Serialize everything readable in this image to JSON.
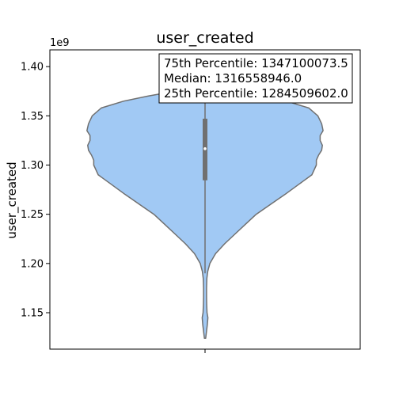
{
  "chart_data": {
    "type": "violin",
    "title": "user_created",
    "xlabel": "",
    "ylabel": "user_created",
    "offset_text": "1e9",
    "ylim": [
      1.113,
      1.417
    ],
    "yticks": [
      1.15,
      1.2,
      1.25,
      1.3,
      1.35,
      1.4
    ],
    "ytick_labels": [
      "1.15",
      "1.20",
      "1.25",
      "1.30",
      "1.35",
      "1.40"
    ],
    "grid": false,
    "fill_color": "#a1c9f4",
    "edge_color": "#707070",
    "box_color": "#707070",
    "median_color": "#ffffff",
    "quartiles": {
      "q1": 1.2845,
      "median": 1.3166,
      "q3": 1.3471
    },
    "whisker": [
      1.19,
      1.382
    ],
    "density_profile": [
      [
        1.124,
        0.004
      ],
      [
        1.13,
        0.009
      ],
      [
        1.138,
        0.015
      ],
      [
        1.145,
        0.019
      ],
      [
        1.15,
        0.013
      ],
      [
        1.158,
        0.011
      ],
      [
        1.166,
        0.01
      ],
      [
        1.175,
        0.01
      ],
      [
        1.185,
        0.012
      ],
      [
        1.192,
        0.018
      ],
      [
        1.2,
        0.032
      ],
      [
        1.21,
        0.07
      ],
      [
        1.22,
        0.13
      ],
      [
        1.23,
        0.2
      ],
      [
        1.24,
        0.27
      ],
      [
        1.25,
        0.34
      ],
      [
        1.26,
        0.435
      ],
      [
        1.27,
        0.53
      ],
      [
        1.28,
        0.62
      ],
      [
        1.29,
        0.71
      ],
      [
        1.3,
        0.74
      ],
      [
        1.305,
        0.74
      ],
      [
        1.31,
        0.755
      ],
      [
        1.315,
        0.775
      ],
      [
        1.32,
        0.78
      ],
      [
        1.325,
        0.765
      ],
      [
        1.33,
        0.765
      ],
      [
        1.335,
        0.785
      ],
      [
        1.342,
        0.775
      ],
      [
        1.35,
        0.75
      ],
      [
        1.358,
        0.69
      ],
      [
        1.365,
        0.54
      ],
      [
        1.37,
        0.38
      ],
      [
        1.375,
        0.2
      ],
      [
        1.38,
        0.06
      ],
      [
        1.383,
        0.0
      ]
    ],
    "annotation": [
      "75th Percentile: 1347100073.5",
      "Median: 1316558946.0",
      "25th Percentile: 1284509602.0"
    ]
  }
}
